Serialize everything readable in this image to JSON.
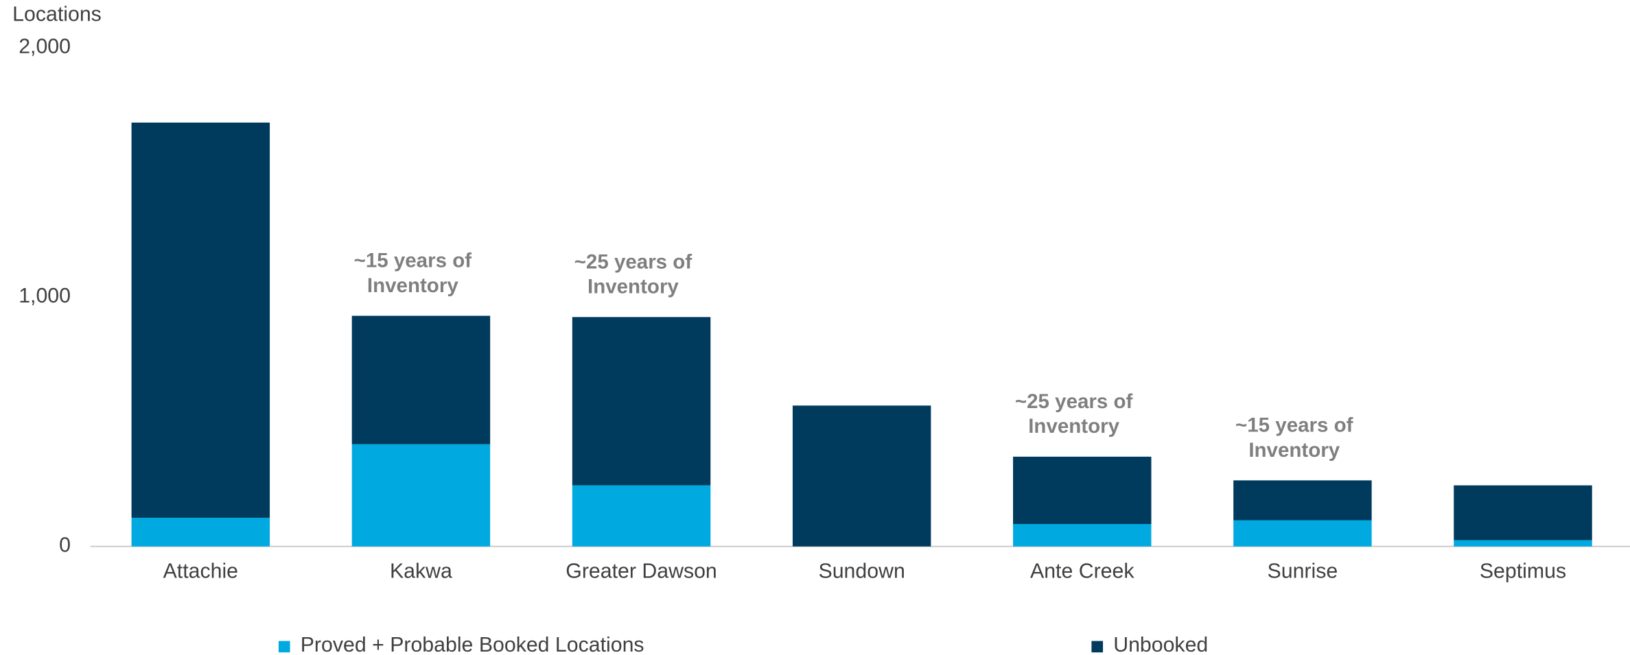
{
  "chart_data": {
    "type": "stacked_bar",
    "y_label": "Locations",
    "categories": [
      "Attachie",
      "Kakwa",
      "Greater Dawson",
      "Sundown",
      "Ante Creek",
      "Sunrise",
      "Septimus"
    ],
    "series": [
      {
        "name": "Proved + Probable Booked Locations",
        "color": "#00a9e0",
        "values": [
          115,
          410,
          245,
          0,
          90,
          105,
          25
        ]
      },
      {
        "name": "Unbooked",
        "color": "#003a5d",
        "values": [
          1585,
          515,
          675,
          565,
          270,
          160,
          220
        ]
      }
    ],
    "annotations": [
      null,
      [
        "~15 years of",
        "Inventory"
      ],
      [
        "~25 years of",
        "Inventory"
      ],
      null,
      [
        "~25 years of",
        "Inventory"
      ],
      [
        "~15 years of",
        "Inventory"
      ],
      null
    ],
    "ylim": [
      0,
      2000
    ],
    "yticks": [
      0,
      {
        "value": 1000,
        "label": "1,000"
      },
      {
        "value": 2000,
        "label": "2,000"
      }
    ],
    "grid": false
  }
}
